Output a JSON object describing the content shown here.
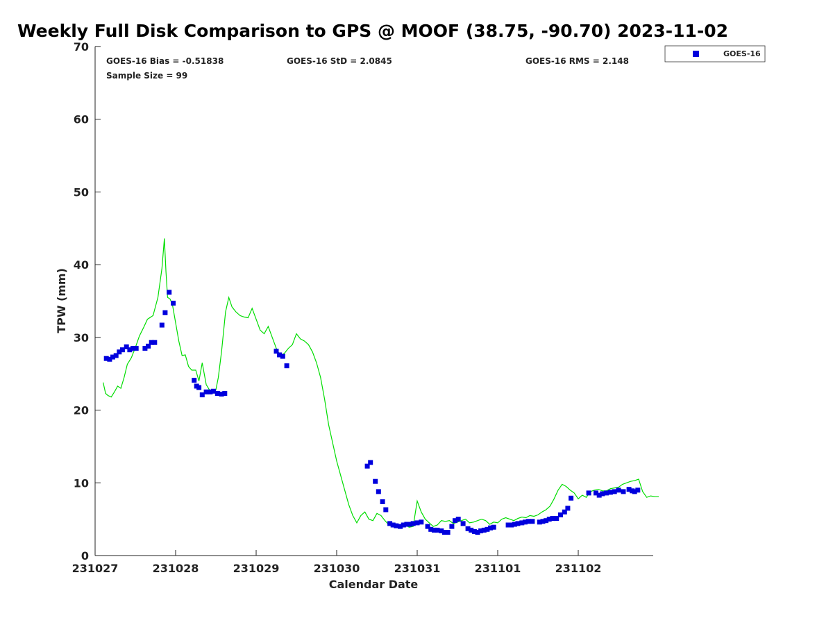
{
  "chart_data": {
    "type": "scatter",
    "title": "Weekly Full Disk Comparison to GPS @ MOOF (38.75, -90.70) 2023-11-02",
    "xlabel": "Calendar Date",
    "ylabel": "TPW (mm)",
    "xlim": [
      0,
      7
    ],
    "ylim": [
      0,
      70
    ],
    "x_ticks": [
      {
        "value": 0,
        "label": "231027"
      },
      {
        "value": 1,
        "label": "231028"
      },
      {
        "value": 2,
        "label": "231029"
      },
      {
        "value": 3,
        "label": "231030"
      },
      {
        "value": 4,
        "label": "231031"
      },
      {
        "value": 5,
        "label": "231101"
      },
      {
        "value": 6,
        "label": "231102"
      }
    ],
    "y_ticks": [
      0,
      10,
      20,
      30,
      40,
      50,
      60,
      70
    ],
    "stats": {
      "bias": "GOES-16 Bias = -0.51838",
      "std": "GOES-16 StD = 2.0845",
      "rms": "GOES-16 RMS = 2.148",
      "sample": "Sample Size = 99"
    },
    "legend": {
      "label": "GOES-16",
      "position": "top-right, outside plot"
    },
    "series": [
      {
        "name": "GOES-16",
        "kind": "markers",
        "color": "#0000dd",
        "x": [
          0.14,
          0.18,
          0.22,
          0.26,
          0.3,
          0.34,
          0.39,
          0.43,
          0.47,
          0.51,
          0.62,
          0.66,
          0.7,
          0.74,
          0.83,
          0.87,
          0.92,
          0.97,
          1.23,
          1.26,
          1.29,
          1.33,
          1.38,
          1.43,
          1.47,
          1.52,
          1.57,
          1.61,
          2.25,
          2.29,
          2.33,
          2.38,
          3.38,
          3.42,
          3.48,
          3.52,
          3.57,
          3.61,
          3.66,
          3.7,
          3.74,
          3.79,
          3.83,
          3.87,
          3.91,
          3.95,
          4.0,
          4.05,
          4.13,
          4.17,
          4.21,
          4.25,
          4.3,
          4.34,
          4.38,
          4.43,
          4.47,
          4.51,
          4.57,
          4.63,
          4.67,
          4.71,
          4.75,
          4.79,
          4.83,
          4.87,
          4.91,
          4.95,
          5.13,
          5.17,
          5.21,
          5.25,
          5.3,
          5.34,
          5.38,
          5.43,
          5.52,
          5.56,
          5.6,
          5.64,
          5.68,
          5.73,
          5.78,
          5.83,
          5.87,
          5.91,
          6.13,
          6.22,
          6.26,
          6.3,
          6.35,
          6.4,
          6.45,
          6.5,
          6.56,
          6.63,
          6.67,
          6.7,
          6.74
        ],
        "y": [
          27.1,
          27.0,
          27.3,
          27.5,
          28.0,
          28.3,
          28.7,
          28.3,
          28.5,
          28.5,
          28.5,
          28.8,
          29.3,
          29.3,
          31.7,
          33.4,
          36.2,
          34.7,
          24.1,
          23.3,
          23.1,
          22.1,
          22.5,
          22.5,
          22.6,
          22.3,
          22.2,
          22.3,
          28.1,
          27.6,
          27.4,
          26.1,
          12.3,
          12.8,
          10.2,
          8.8,
          7.4,
          6.3,
          4.4,
          4.2,
          4.1,
          4.0,
          4.2,
          4.3,
          4.3,
          4.4,
          4.5,
          4.6,
          4.0,
          3.6,
          3.5,
          3.5,
          3.4,
          3.2,
          3.2,
          4.0,
          4.8,
          5.0,
          4.4,
          3.7,
          3.5,
          3.3,
          3.2,
          3.4,
          3.5,
          3.6,
          3.8,
          3.9,
          4.2,
          4.2,
          4.3,
          4.4,
          4.5,
          4.6,
          4.7,
          4.7,
          4.6,
          4.7,
          4.8,
          5.0,
          5.1,
          5.1,
          5.6,
          6.0,
          6.5,
          7.9,
          8.6,
          8.6,
          8.3,
          8.5,
          8.6,
          8.7,
          8.8,
          9.0,
          8.8,
          9.1,
          8.9,
          8.8,
          9.0
        ],
        "note": "99 samples"
      },
      {
        "name": "GPS",
        "kind": "line",
        "color": "#00dd00",
        "x": [
          0.1,
          0.13,
          0.16,
          0.2,
          0.24,
          0.28,
          0.32,
          0.36,
          0.4,
          0.45,
          0.5,
          0.55,
          0.6,
          0.65,
          0.72,
          0.78,
          0.83,
          0.86,
          0.88,
          0.9,
          0.93,
          0.96,
          1.0,
          1.04,
          1.08,
          1.12,
          1.16,
          1.2,
          1.25,
          1.29,
          1.33,
          1.38,
          1.43,
          1.47,
          1.5,
          1.53,
          1.57,
          1.62,
          1.66,
          1.7,
          1.75,
          1.8,
          1.85,
          1.9,
          1.95,
          2.0,
          2.05,
          2.1,
          2.15,
          2.2,
          2.25,
          2.3,
          2.35,
          2.4,
          2.45,
          2.5,
          2.55,
          2.6,
          2.65,
          2.7,
          2.75,
          2.8,
          2.85,
          2.9,
          2.95,
          3.0,
          3.05,
          3.1,
          3.15,
          3.2,
          3.25,
          3.3,
          3.35,
          3.4,
          3.45,
          3.5,
          3.55,
          3.6,
          3.65,
          3.7,
          3.75,
          3.8,
          3.85,
          3.9,
          3.95,
          4.0,
          4.05,
          4.1,
          4.15,
          4.2,
          4.25,
          4.3,
          4.35,
          4.4,
          4.45,
          4.5,
          4.55,
          4.6,
          4.65,
          4.7,
          4.75,
          4.8,
          4.85,
          4.9,
          4.95,
          5.0,
          5.05,
          5.1,
          5.15,
          5.2,
          5.25,
          5.3,
          5.35,
          5.4,
          5.45,
          5.5,
          5.55,
          5.6,
          5.65,
          5.7,
          5.75,
          5.8,
          5.85,
          5.9,
          5.95,
          6.0,
          6.05,
          6.1,
          6.15,
          6.2,
          6.25,
          6.3,
          6.35,
          6.4,
          6.45,
          6.5,
          6.55,
          6.6,
          6.65,
          6.7,
          6.75,
          6.8,
          6.85,
          6.9,
          6.95,
          7.0
        ],
        "y": [
          23.8,
          22.3,
          22.0,
          21.8,
          22.5,
          23.3,
          23.0,
          24.5,
          26.3,
          27.2,
          28.6,
          30.2,
          31.3,
          32.5,
          33.0,
          35.5,
          39.5,
          43.6,
          39.0,
          35.5,
          35.3,
          34.5,
          32.0,
          29.5,
          27.5,
          27.6,
          26.0,
          25.5,
          25.5,
          24.0,
          26.5,
          23.5,
          22.6,
          22.5,
          22.8,
          24.5,
          28.0,
          33.5,
          35.5,
          34.2,
          33.5,
          33.0,
          32.8,
          32.7,
          34.0,
          32.5,
          31.0,
          30.5,
          31.5,
          30.0,
          28.5,
          27.5,
          27.8,
          28.5,
          29.0,
          30.5,
          29.8,
          29.5,
          29.0,
          28.0,
          26.5,
          24.5,
          21.5,
          18.0,
          15.5,
          13.0,
          11.0,
          9.0,
          7.0,
          5.5,
          4.5,
          5.5,
          6.0,
          5.0,
          4.8,
          5.8,
          5.5,
          4.8,
          4.2,
          4.0,
          4.3,
          3.8,
          4.2,
          3.9,
          4.0,
          7.5,
          6.0,
          5.0,
          4.5,
          4.0,
          4.2,
          4.8,
          4.7,
          4.8,
          4.4,
          4.6,
          4.8,
          5.0,
          4.5,
          4.6,
          4.8,
          5.0,
          4.8,
          4.3,
          4.6,
          4.5,
          5.0,
          5.2,
          5.0,
          4.8,
          5.1,
          5.3,
          5.2,
          5.5,
          5.4,
          5.6,
          6.0,
          6.3,
          6.8,
          7.8,
          9.0,
          9.8,
          9.5,
          9.0,
          8.6,
          7.8,
          8.3,
          8.0,
          8.8,
          9.0,
          9.1,
          8.9,
          8.9,
          9.2,
          9.3,
          9.4,
          9.8,
          10.0,
          10.2,
          10.3,
          10.5,
          8.8,
          8.0,
          8.2,
          8.1,
          8.1
        ]
      }
    ]
  }
}
